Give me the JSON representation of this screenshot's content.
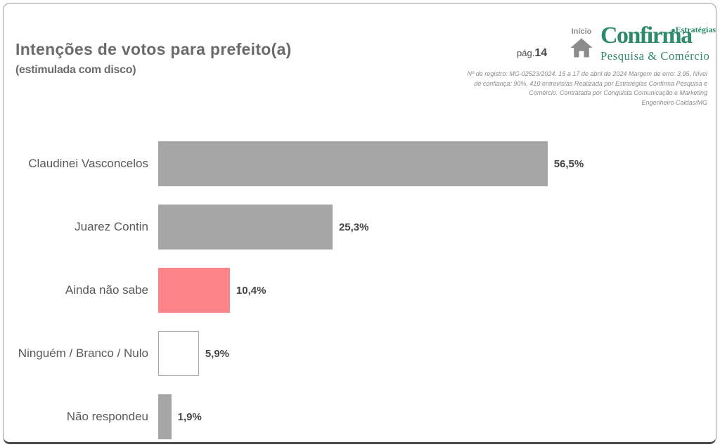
{
  "header": {
    "title": "Intenções de votos para prefeito(a)",
    "subtitle": "(estimulada com disco)",
    "page_prefix": "pág.",
    "page_number": "14",
    "home_label": "Início",
    "logo": {
      "name": "Confirma",
      "tagline_top": "Estratégias",
      "tagline_bottom": "Pesquisa & Comércio",
      "green": "#2E8B6A"
    },
    "registration_lines": [
      "Nº de registro: MG-02523/2024. 15 a 17 de abril de 2024 Margem de erro: 3,95, Nível",
      "de confiança: 90%, 410 entrevistas Realizada por Estratégias Confirma Pesquisa e",
      "Comércio. Contratada por Conquista Comunicação e Marketing",
      "Engenheiro Caldas/MG"
    ]
  },
  "chart_data": {
    "type": "bar",
    "orientation": "horizontal",
    "title": "Intenções de votos para prefeito(a)",
    "subtitle": "(estimulada com disco)",
    "categories": [
      "Claudinei Vasconcelos",
      "Juarez Contin",
      "Ainda não sabe",
      "Ninguém / Branco / Nulo",
      "Não respondeu"
    ],
    "values": [
      56.5,
      25.3,
      10.4,
      5.9,
      1.9
    ],
    "value_suffix": "%",
    "xlim": [
      0,
      60
    ],
    "grid": false,
    "legend": false,
    "bars": [
      {
        "label": "Claudinei Vasconcelos",
        "value": 56.5,
        "value_label": "56,5%",
        "fill": "#A6A6A6"
      },
      {
        "label": "Juarez Contin",
        "value": 25.3,
        "value_label": "25,3%",
        "fill": "#A6A6A6"
      },
      {
        "label": "Ainda não sabe",
        "value": 10.4,
        "value_label": "10,4%",
        "fill": "#FC8388"
      },
      {
        "label": "Ninguém / Branco / Nulo",
        "value": 5.9,
        "value_label": "5,9%",
        "fill": "#FFFFFF",
        "border": "#A6A6A6"
      },
      {
        "label": "Não respondeu",
        "value": 1.9,
        "value_label": "1,9%",
        "fill": "#A6A6A6"
      }
    ]
  }
}
